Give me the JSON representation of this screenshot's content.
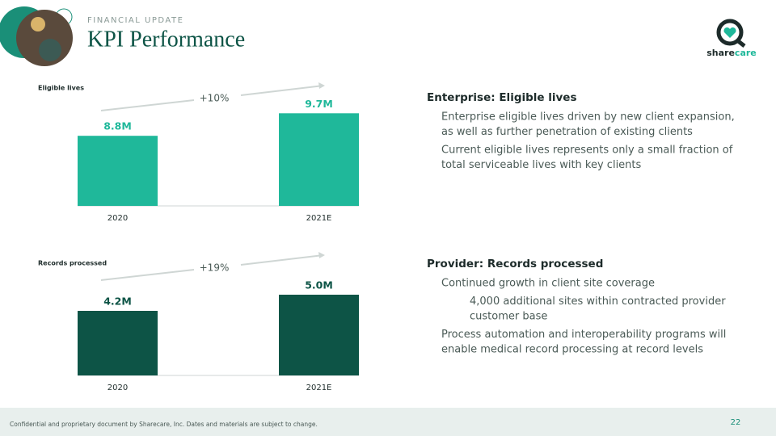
{
  "header": {
    "kicker": "FINANCIAL UPDATE",
    "title": "KPI Performance"
  },
  "logo": [
    "share",
    "care"
  ],
  "chart_data": [
    {
      "type": "bar",
      "title": "Eligible lives",
      "categories": [
        "2020",
        "2021E"
      ],
      "values": [
        8.8,
        9.7
      ],
      "value_labels": [
        "8.8M",
        "9.7M"
      ],
      "color": "#1fb89a",
      "ylim": [
        6,
        11
      ],
      "annotation": "+10%"
    },
    {
      "type": "bar",
      "title": "Records processed",
      "categories": [
        "2020",
        "2021E"
      ],
      "values": [
        4.2,
        5.0
      ],
      "value_labels": [
        "4.2M",
        "5.0M"
      ],
      "color": "#0d5446",
      "ylim": [
        1,
        7
      ],
      "annotation": "+19%"
    }
  ],
  "sections": [
    {
      "heading": "Enterprise: Eligible lives",
      "items": [
        {
          "level": 1,
          "lines": [
            "Enterprise eligible lives driven by new client expansion,",
            "as well as further penetration of existing clients"
          ]
        },
        {
          "level": 1,
          "lines": [
            "Current eligible lives represents only a small fraction of",
            "total serviceable lives with key clients"
          ]
        }
      ]
    },
    {
      "heading": "Provider: Records processed",
      "items": [
        {
          "level": 1,
          "lines": [
            "Continued growth in client site coverage"
          ]
        },
        {
          "level": 2,
          "lines": [
            "4,000 additional sites within contracted provider",
            "customer base"
          ]
        },
        {
          "level": 1,
          "lines": [
            "Process automation and interoperability programs will",
            "enable medical record processing at record levels"
          ]
        }
      ]
    }
  ],
  "footer": {
    "text": "Confidential and proprietary document by Sharecare, Inc. Dates and materials are subject to change.",
    "page": "22"
  }
}
